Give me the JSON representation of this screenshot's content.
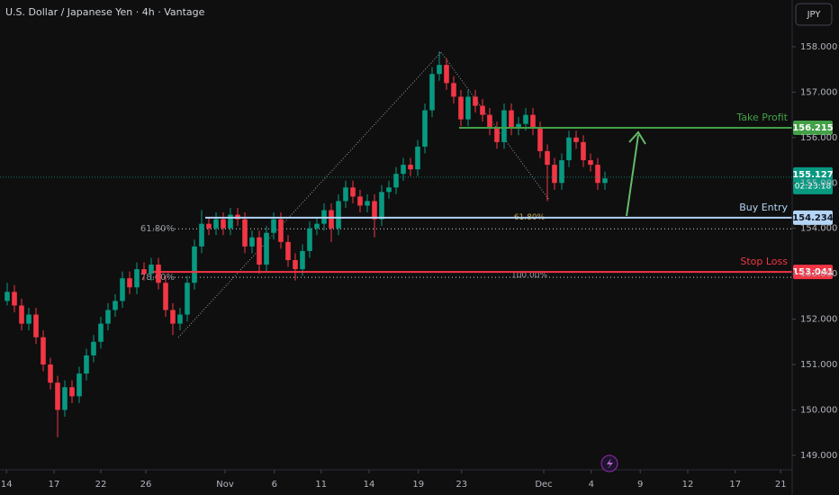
{
  "chart_data": {
    "type": "candlestick",
    "title": "U.S. Dollar / Japanese Yen · 4h · Vantage",
    "currency": "JPY",
    "up_color": "#089981",
    "down_color": "#f23645",
    "xlim": [
      0,
      110
    ],
    "ylim": [
      148.72,
      159.03
    ],
    "xticks": [
      {
        "value": 0.9,
        "label": "14"
      },
      {
        "value": 7.5,
        "label": "17"
      },
      {
        "value": 14,
        "label": "22"
      },
      {
        "value": 20.25,
        "label": "26"
      },
      {
        "value": 31.25,
        "label": "Nov"
      },
      {
        "value": 38.1,
        "label": "6"
      },
      {
        "value": 44.6,
        "label": "11"
      },
      {
        "value": 51.25,
        "label": "14"
      },
      {
        "value": 58.1,
        "label": "19"
      },
      {
        "value": 64.1,
        "label": "23"
      },
      {
        "value": 75.5,
        "label": "Dec"
      },
      {
        "value": 82.1,
        "label": "4"
      },
      {
        "value": 88.9,
        "label": "9"
      },
      {
        "value": 95.5,
        "label": "12"
      },
      {
        "value": 102.1,
        "label": "17"
      },
      {
        "value": 108.4,
        "label": "21"
      }
    ],
    "yticks": [
      {
        "value": 149,
        "label": "149.000"
      },
      {
        "value": 150,
        "label": "150.000"
      },
      {
        "value": 151,
        "label": "151.000"
      },
      {
        "value": 152,
        "label": "152.000"
      },
      {
        "value": 153,
        "label": "153.000"
      },
      {
        "value": 154,
        "label": "154.000"
      },
      {
        "value": 155,
        "label": "155.000"
      },
      {
        "value": 156,
        "label": "156.000"
      },
      {
        "value": 157,
        "label": "157.000"
      },
      {
        "value": 158,
        "label": "158.000"
      }
    ],
    "x": [
      1,
      2,
      3,
      4,
      5,
      6,
      7,
      8,
      9,
      10,
      11,
      12,
      13,
      14,
      15,
      16,
      17,
      18,
      19,
      20,
      21,
      22,
      23,
      24,
      25,
      26,
      27,
      28,
      29,
      30,
      31,
      32,
      33,
      34,
      35,
      36,
      37,
      38,
      39,
      40,
      41,
      42,
      43,
      44,
      45,
      46,
      47,
      48,
      49,
      50,
      51,
      52,
      53,
      54,
      55,
      56,
      57,
      58,
      59,
      60,
      61,
      62,
      63,
      64,
      65,
      66,
      67,
      68,
      69,
      70,
      71,
      72,
      73,
      74,
      75,
      76,
      77,
      78,
      79,
      80,
      81,
      82,
      83,
      84
    ],
    "candles": [
      [
        152.4,
        152.8,
        152.3,
        152.6
      ],
      [
        152.6,
        152.75,
        152.15,
        152.3
      ],
      [
        152.3,
        152.45,
        151.75,
        151.9
      ],
      [
        151.9,
        152.25,
        151.75,
        152.1
      ],
      [
        152.1,
        152.25,
        151.45,
        151.6
      ],
      [
        151.6,
        151.75,
        150.85,
        151.0
      ],
      [
        151.0,
        151.15,
        150.45,
        150.6
      ],
      [
        150.6,
        150.75,
        149.4,
        150.0
      ],
      [
        150.0,
        150.65,
        149.85,
        150.5
      ],
      [
        150.5,
        150.65,
        150.15,
        150.3
      ],
      [
        150.3,
        150.95,
        150.15,
        150.8
      ],
      [
        150.8,
        151.35,
        150.65,
        151.2
      ],
      [
        151.2,
        151.65,
        151.05,
        151.5
      ],
      [
        151.5,
        152.05,
        151.35,
        151.9
      ],
      [
        151.9,
        152.35,
        151.75,
        152.2
      ],
      [
        152.2,
        152.55,
        152.05,
        152.4
      ],
      [
        152.4,
        153.05,
        152.25,
        152.9
      ],
      [
        152.9,
        153.05,
        152.55,
        152.7
      ],
      [
        152.7,
        153.25,
        152.55,
        153.1
      ],
      [
        153.1,
        153.25,
        152.85,
        153.0
      ],
      [
        153.0,
        153.35,
        152.85,
        153.2
      ],
      [
        153.2,
        153.35,
        152.65,
        152.8
      ],
      [
        152.8,
        152.95,
        152.05,
        152.2
      ],
      [
        152.2,
        152.35,
        151.65,
        151.9
      ],
      [
        151.9,
        152.25,
        151.75,
        152.1
      ],
      [
        152.1,
        152.95,
        151.95,
        152.8
      ],
      [
        152.8,
        153.75,
        152.65,
        153.6
      ],
      [
        153.6,
        154.4,
        153.45,
        154.1
      ],
      [
        154.1,
        154.25,
        153.85,
        154.0
      ],
      [
        154.0,
        154.35,
        153.85,
        154.2
      ],
      [
        154.2,
        154.35,
        153.85,
        154.0
      ],
      [
        154.0,
        154.45,
        153.85,
        154.3
      ],
      [
        154.3,
        154.45,
        154.05,
        154.2
      ],
      [
        154.2,
        154.35,
        153.45,
        153.6
      ],
      [
        153.6,
        153.95,
        153.45,
        153.8
      ],
      [
        153.8,
        153.95,
        153.0,
        153.2
      ],
      [
        153.2,
        154.05,
        153.05,
        153.9
      ],
      [
        153.9,
        154.35,
        153.75,
        154.2
      ],
      [
        154.2,
        154.35,
        153.55,
        153.7
      ],
      [
        153.7,
        153.85,
        153.15,
        153.3
      ],
      [
        153.3,
        153.45,
        152.85,
        153.1
      ],
      [
        153.1,
        153.65,
        152.95,
        153.5
      ],
      [
        153.5,
        154.15,
        153.35,
        154.0
      ],
      [
        154.0,
        154.25,
        153.85,
        154.1
      ],
      [
        154.1,
        154.55,
        153.95,
        154.4
      ],
      [
        154.4,
        154.55,
        153.7,
        154.0
      ],
      [
        154.0,
        154.75,
        153.85,
        154.6
      ],
      [
        154.6,
        155.05,
        154.45,
        154.9
      ],
      [
        154.9,
        155.05,
        154.55,
        154.7
      ],
      [
        154.7,
        154.85,
        154.35,
        154.5
      ],
      [
        154.5,
        154.75,
        154.35,
        154.6
      ],
      [
        154.6,
        154.75,
        153.8,
        154.2
      ],
      [
        154.2,
        154.95,
        154.05,
        154.8
      ],
      [
        154.8,
        155.05,
        154.65,
        154.9
      ],
      [
        154.9,
        155.35,
        154.75,
        155.2
      ],
      [
        155.2,
        155.55,
        155.05,
        155.4
      ],
      [
        155.4,
        155.55,
        155.15,
        155.3
      ],
      [
        155.3,
        155.95,
        155.15,
        155.8
      ],
      [
        155.8,
        156.75,
        155.65,
        156.6
      ],
      [
        156.6,
        157.55,
        156.45,
        157.4
      ],
      [
        157.4,
        157.9,
        157.25,
        157.6
      ],
      [
        157.6,
        157.75,
        157.05,
        157.2
      ],
      [
        157.2,
        157.35,
        156.75,
        156.9
      ],
      [
        156.9,
        157.05,
        156.25,
        156.4
      ],
      [
        156.4,
        157.05,
        156.25,
        156.9
      ],
      [
        156.9,
        157.05,
        156.55,
        156.7
      ],
      [
        156.7,
        156.85,
        156.35,
        156.5
      ],
      [
        156.5,
        156.65,
        156.05,
        156.2
      ],
      [
        156.2,
        156.35,
        155.75,
        155.9
      ],
      [
        155.9,
        156.75,
        155.75,
        156.6
      ],
      [
        156.6,
        156.75,
        156.05,
        156.2
      ],
      [
        156.2,
        156.45,
        156.05,
        156.3
      ],
      [
        156.3,
        156.65,
        156.15,
        156.5
      ],
      [
        156.5,
        156.65,
        156.05,
        156.2
      ],
      [
        156.2,
        156.35,
        155.55,
        155.7
      ],
      [
        155.7,
        155.85,
        154.6,
        155.4
      ],
      [
        155.4,
        155.55,
        154.85,
        155.0
      ],
      [
        155.0,
        155.65,
        154.85,
        155.5
      ],
      [
        155.5,
        156.15,
        155.35,
        156.0
      ],
      [
        156.0,
        156.15,
        155.75,
        155.9
      ],
      [
        155.9,
        156.05,
        155.35,
        155.5
      ],
      [
        155.5,
        155.65,
        155.25,
        155.4
      ],
      [
        155.4,
        155.55,
        154.85,
        155.0
      ],
      [
        155.0,
        155.25,
        154.85,
        155.1
      ]
    ],
    "levels": [
      {
        "name": "Take Profit",
        "value": 156.215,
        "color": "#43a047"
      },
      {
        "name": "Buy Entry",
        "value": 154.234,
        "color": "#b3d4f5"
      },
      {
        "name": "Stop Loss",
        "value": 153.041,
        "color": "#f23645"
      }
    ],
    "fib_left": [
      {
        "label": "61.80%",
        "value": 153.99
      },
      {
        "label": "78.60%",
        "value": 152.92
      }
    ],
    "fib_center": [
      {
        "label": "61.80%",
        "value": 154.24
      },
      {
        "label": "100.00%",
        "value": 152.96
      }
    ],
    "current_price": {
      "value": 155.127,
      "countdown": "02:23:18",
      "color": "#089981"
    }
  }
}
